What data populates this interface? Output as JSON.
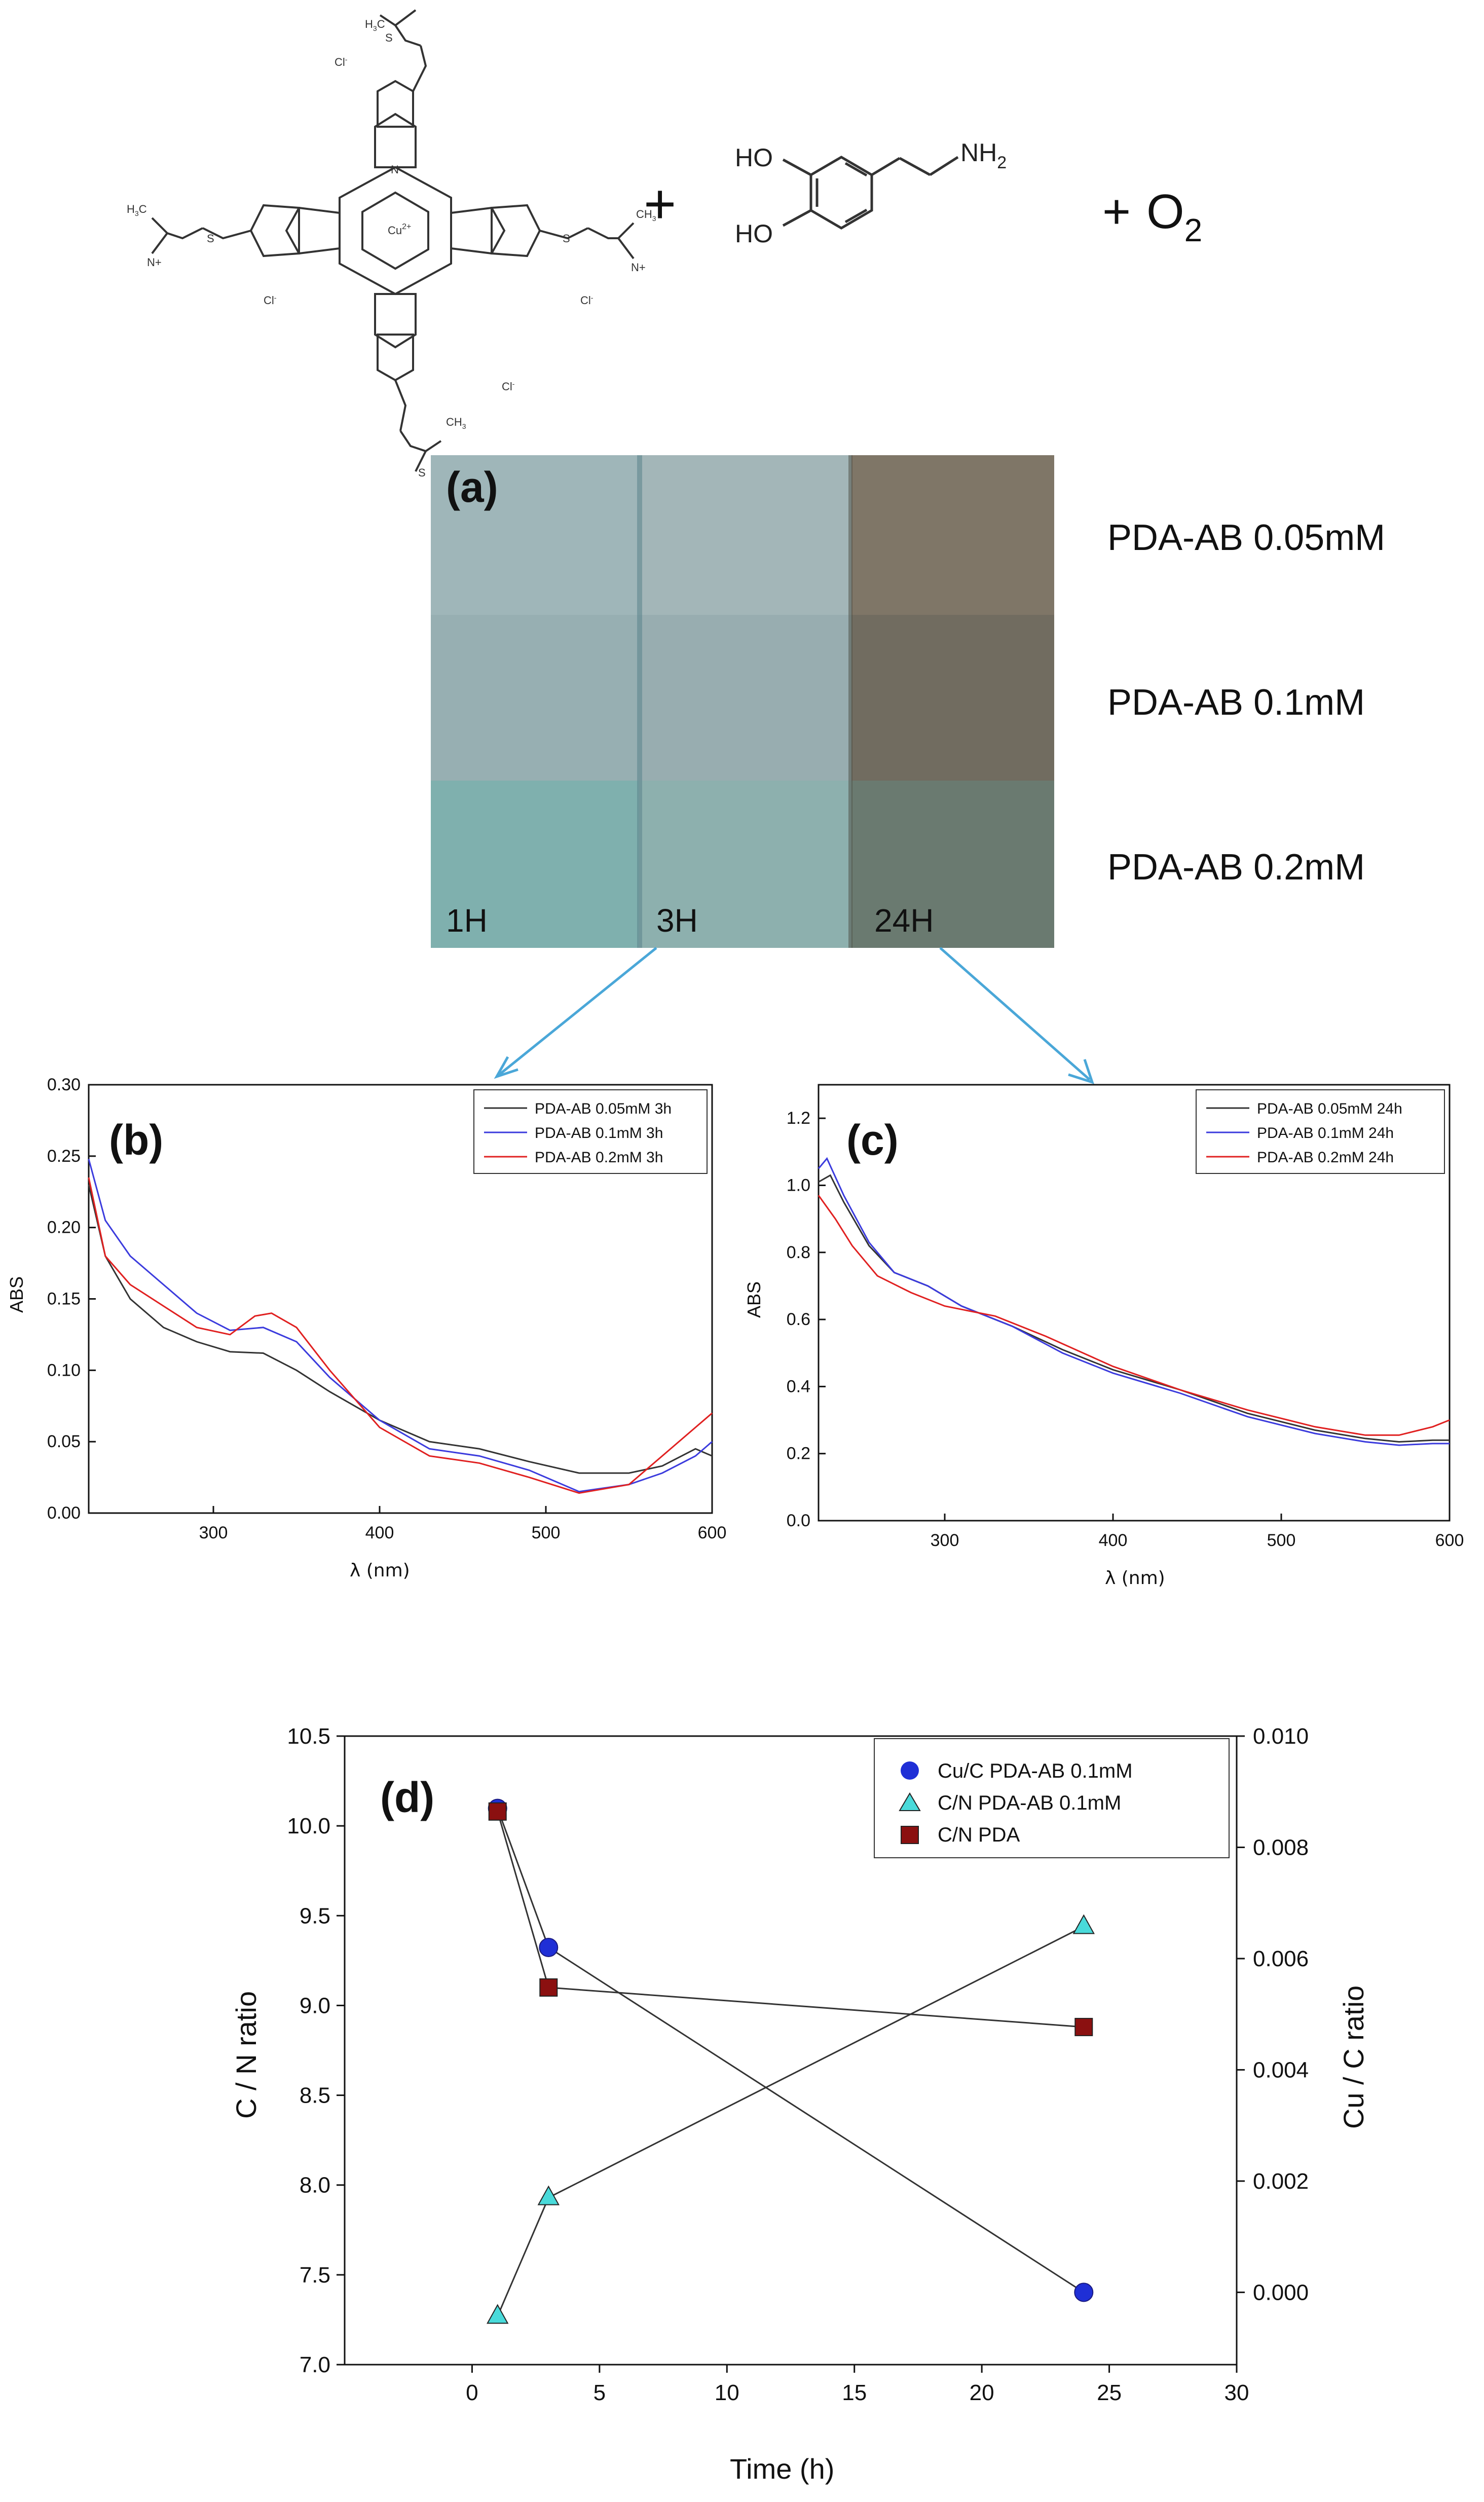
{
  "reaction": {
    "plus_1": "+",
    "plus_2": "+",
    "oxygen_base": "O",
    "oxygen_sub": "2",
    "dopamine": {
      "ho_top": "HO",
      "ho_bottom": "HO",
      "nh2_base": "NH",
      "nh2_sub": "2"
    },
    "phthalocyanine": {
      "metal_label": "Cu",
      "metal_charge": "2+",
      "chloride": "Cl",
      "charge_minus": "-",
      "sulfur": "S",
      "nitrogen": "N",
      "methyl": "CH",
      "methyl_sub": "3",
      "n_plus": "N+",
      "h3c_label": "H",
      "h3c_c": "C"
    }
  },
  "photo_panel": {
    "label": "(a)",
    "rows": [
      "PDA-AB 0.05mM",
      "PDA-AB 0.1mM",
      "PDA-AB 0.2mM"
    ],
    "time_labels": [
      "1H",
      "3H",
      "24H"
    ],
    "colors": {
      "row1": [
        "#9fb6b9",
        "#a3b6b8",
        "#7f7667"
      ],
      "row2": [
        "#97afb2",
        "#98adb0",
        "#716c60"
      ],
      "row3": [
        "#7fb0ae",
        "#8db0ae",
        "#6a7a70"
      ],
      "arrow": "#4aa7d8"
    }
  },
  "chart_data": [
    {
      "panel": "b",
      "label": "(b)",
      "type": "line",
      "xlabel": "λ (nm)",
      "ylabel": "ABS",
      "xlim": [
        225,
        600
      ],
      "ylim": [
        0,
        0.3
      ],
      "xticks": [
        "300",
        "400",
        "500",
        "600"
      ],
      "yticks": [
        "0.00",
        "0.05",
        "0.10",
        "0.15",
        "0.20",
        "0.25",
        "0.30"
      ],
      "legend_position": "top-right",
      "series": [
        {
          "name": "PDA-AB 0.05mM 3h",
          "color": "#333333",
          "x": [
            225,
            235,
            250,
            270,
            290,
            310,
            330,
            350,
            370,
            400,
            430,
            460,
            490,
            520,
            550,
            570,
            590,
            600
          ],
          "y": [
            0.23,
            0.18,
            0.15,
            0.13,
            0.12,
            0.113,
            0.112,
            0.1,
            0.085,
            0.065,
            0.05,
            0.045,
            0.036,
            0.028,
            0.028,
            0.033,
            0.045,
            0.04
          ]
        },
        {
          "name": "PDA-AB 0.1mM 3h",
          "color": "#3b3bdd",
          "x": [
            225,
            235,
            250,
            270,
            290,
            310,
            330,
            350,
            370,
            400,
            430,
            460,
            490,
            520,
            550,
            570,
            590,
            600
          ],
          "y": [
            0.248,
            0.205,
            0.18,
            0.16,
            0.14,
            0.128,
            0.13,
            0.12,
            0.095,
            0.065,
            0.045,
            0.04,
            0.03,
            0.015,
            0.02,
            0.028,
            0.04,
            0.05
          ]
        },
        {
          "name": "PDA-AB 0.2mM 3h",
          "color": "#e02020",
          "x": [
            225,
            235,
            250,
            270,
            290,
            310,
            325,
            335,
            350,
            370,
            400,
            430,
            460,
            490,
            520,
            550,
            570,
            590,
            600
          ],
          "y": [
            0.235,
            0.18,
            0.16,
            0.145,
            0.13,
            0.125,
            0.138,
            0.14,
            0.13,
            0.1,
            0.06,
            0.04,
            0.035,
            0.025,
            0.014,
            0.02,
            0.04,
            0.06,
            0.07
          ]
        }
      ],
      "legend": [
        "PDA-AB 0.05mM 3h",
        "PDA-AB 0.1mM 3h",
        "PDA-AB 0.2mM 3h"
      ]
    },
    {
      "panel": "c",
      "label": "(c)",
      "type": "line",
      "xlabel": "λ (nm)",
      "ylabel": "ABS",
      "xlim": [
        225,
        600
      ],
      "ylim": [
        0,
        1.3
      ],
      "xticks": [
        "300",
        "400",
        "500",
        "600"
      ],
      "yticks": [
        "0.0",
        "0.2",
        "0.4",
        "0.6",
        "0.8",
        "1.0",
        "1.2"
      ],
      "legend_position": "top-right",
      "series": [
        {
          "name": "PDA-AB 0.05mM 24h",
          "color": "#333333",
          "x": [
            225,
            232,
            240,
            255,
            270,
            290,
            310,
            340,
            370,
            400,
            440,
            480,
            520,
            550,
            570,
            590,
            600
          ],
          "y": [
            1.01,
            1.03,
            0.95,
            0.82,
            0.74,
            0.7,
            0.64,
            0.58,
            0.51,
            0.45,
            0.39,
            0.32,
            0.27,
            0.245,
            0.235,
            0.24,
            0.24
          ]
        },
        {
          "name": "PDA-AB 0.1mM 24h",
          "color": "#3b3bdd",
          "x": [
            225,
            230,
            240,
            255,
            270,
            290,
            310,
            340,
            370,
            400,
            440,
            480,
            520,
            550,
            570,
            590,
            600
          ],
          "y": [
            1.05,
            1.08,
            0.97,
            0.83,
            0.74,
            0.7,
            0.64,
            0.58,
            0.5,
            0.44,
            0.38,
            0.31,
            0.26,
            0.235,
            0.225,
            0.23,
            0.23
          ]
        },
        {
          "name": "PDA-AB 0.2mM 24h",
          "color": "#e02020",
          "x": [
            225,
            235,
            245,
            260,
            280,
            300,
            330,
            360,
            400,
            440,
            480,
            520,
            550,
            570,
            590,
            600
          ],
          "y": [
            0.97,
            0.9,
            0.82,
            0.73,
            0.68,
            0.64,
            0.61,
            0.55,
            0.46,
            0.39,
            0.33,
            0.28,
            0.255,
            0.255,
            0.28,
            0.3
          ]
        }
      ],
      "legend": [
        "PDA-AB 0.05mM 24h",
        "PDA-AB 0.1mM 24h",
        "PDA-AB 0.2mM 24h"
      ]
    },
    {
      "panel": "d",
      "label": "(d)",
      "type": "scatter",
      "xlabel": "Time (h)",
      "ylabel_left": "C / N ratio",
      "ylabel_right": "Cu / C ratio",
      "xlim": [
        -5,
        30
      ],
      "ylim_left": [
        7.0,
        10.5
      ],
      "ylim_right": [
        -0.0013,
        0.01
      ],
      "xticks": [
        "0",
        "5",
        "10",
        "15",
        "20",
        "25",
        "30"
      ],
      "yticks_left": [
        "7.0",
        "7.5",
        "8.0",
        "8.5",
        "9.0",
        "9.5",
        "10.0",
        "10.5"
      ],
      "yticks_right": [
        "0.000",
        "0.002",
        "0.004",
        "0.006",
        "0.008",
        "0.010"
      ],
      "legend_position": "top-right",
      "series": [
        {
          "name": "Cu/C PDA-AB 0.1mM",
          "axis": "right",
          "marker": "circle",
          "color": "#1f2fd6",
          "x": [
            1,
            3,
            24
          ],
          "y": [
            0.0087,
            0.0062,
            0.0
          ]
        },
        {
          "name": "C/N PDA-AB 0.1mM",
          "axis": "left",
          "marker": "triangle",
          "color": "#49dada",
          "x": [
            1,
            3,
            24
          ],
          "y": [
            7.27,
            7.93,
            9.44
          ]
        },
        {
          "name": "C/N PDA",
          "axis": "left",
          "marker": "square",
          "color": "#8b1010",
          "x": [
            1,
            3,
            24
          ],
          "y": [
            10.08,
            9.1,
            8.88
          ]
        }
      ],
      "legend": [
        "Cu/C PDA-AB 0.1mM",
        "C/N PDA-AB 0.1mM",
        "C/N PDA"
      ]
    }
  ]
}
